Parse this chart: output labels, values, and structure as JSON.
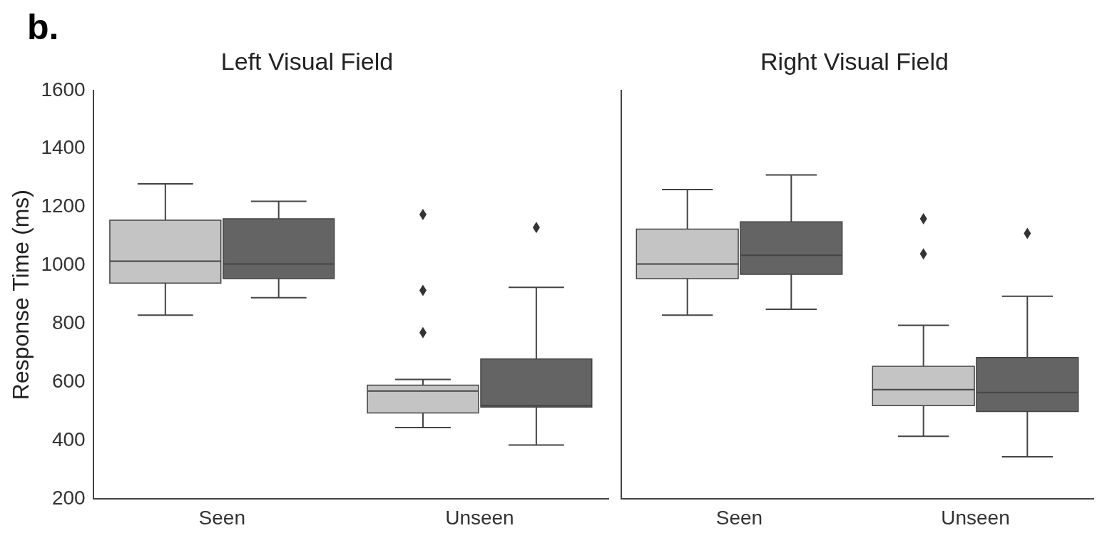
{
  "chart_data": [
    {
      "type": "box",
      "title": "Left Visual Field",
      "ylabel": "Response Time (ms)",
      "annotations": [
        "b."
      ],
      "categories": [
        "Seen",
        "Unseen"
      ],
      "ylim": [
        200,
        1600
      ],
      "yticks": [
        200,
        400,
        600,
        800,
        1000,
        1200,
        1400,
        1600
      ],
      "series": [
        {
          "color": "#c4c4c4",
          "boxes": [
            {
              "low": 830,
              "q1": 940,
              "median": 1015,
              "q3": 1155,
              "high": 1280
            },
            {
              "low": 445,
              "q1": 495,
              "median": 570,
              "q3": 590,
              "high": 610,
              "outliers": [
                770,
                915,
                1175
              ]
            }
          ]
        },
        {
          "color": "#646464",
          "boxes": [
            {
              "low": 890,
              "q1": 955,
              "median": 1005,
              "q3": 1160,
              "high": 1220
            },
            {
              "low": 385,
              "q1": 515,
              "median": 520,
              "q3": 680,
              "high": 925,
              "outliers": [
                1130
              ]
            }
          ]
        }
      ]
    },
    {
      "type": "box",
      "title": "Right Visual Field",
      "categories": [
        "Seen",
        "Unseen"
      ],
      "ylim": [
        200,
        1600
      ],
      "yticks": [
        200,
        400,
        600,
        800,
        1000,
        1200,
        1400,
        1600
      ],
      "tick_labels": "x",
      "series": [
        {
          "color": "#c4c4c4",
          "boxes": [
            {
              "low": 830,
              "q1": 955,
              "median": 1005,
              "q3": 1125,
              "high": 1260
            },
            {
              "low": 415,
              "q1": 520,
              "median": 575,
              "q3": 655,
              "high": 795,
              "outliers": [
                1040,
                1160
              ]
            }
          ]
        },
        {
          "color": "#646464",
          "boxes": [
            {
              "low": 850,
              "q1": 970,
              "median": 1035,
              "q3": 1150,
              "high": 1310
            },
            {
              "low": 345,
              "q1": 500,
              "median": 565,
              "q3": 685,
              "high": 895,
              "outliers": [
                1110
              ]
            }
          ]
        }
      ]
    }
  ]
}
